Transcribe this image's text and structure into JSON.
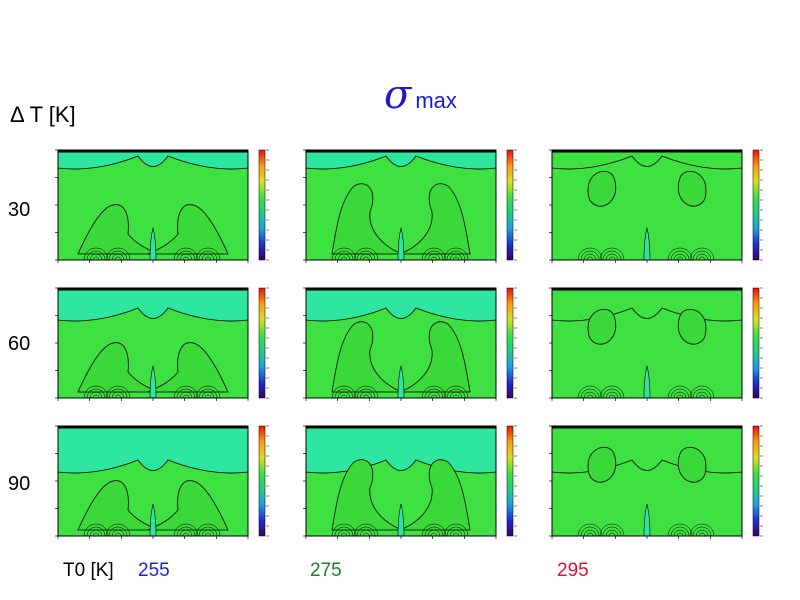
{
  "title": {
    "symbol": "σ",
    "subscript": "max"
  },
  "row_axis_label": "Δ T [K]",
  "col_axis_label": "T0 [K]",
  "rows": [
    "30",
    "60",
    "90"
  ],
  "columns": [
    {
      "label": "255",
      "color": "#2020d0"
    },
    {
      "label": "275",
      "color": "#208020"
    },
    {
      "label": "295",
      "color": "#e01030"
    }
  ],
  "chart_data": {
    "type": "heatmap",
    "title": "σ max",
    "layout": "3x3 grid of contour maps (rows: ΔT = 30, 60, 90 K; columns: T0 = 255, 275, 295 K)",
    "xlabel": "",
    "ylabel": "",
    "colormap": [
      "#3a0066",
      "#1f2fd0",
      "#1ea0e0",
      "#20d080",
      "#3ee042",
      "#d8e020",
      "#ff9a10",
      "#e81010"
    ],
    "background_color": "#3ee042",
    "upper_band_color": "#2ee6a0",
    "contour_color": "#000000"
  }
}
